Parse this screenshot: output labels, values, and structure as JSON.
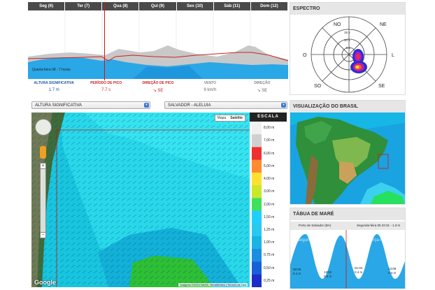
{
  "forecast": {
    "days": [
      "Seg (6)",
      "Ter (7)",
      "Qua (8)",
      "Qui (9)",
      "Sex (10)",
      "Sáb (11)",
      "Dom (12)"
    ],
    "cursor_note": "Quarta-feira 08 - 7 horas",
    "params": [
      {
        "label": "ALTURA SIGNIFICATIVA",
        "value": "1.7 m"
      },
      {
        "label": "PERÍODO DE PICO",
        "value": "7.7 s"
      },
      {
        "label": "DIREÇÃO DE PICO",
        "value": "SE"
      },
      {
        "label": "VENTO",
        "value": "9 km/h"
      },
      {
        "label": "DIREÇÃO",
        "value": "SE"
      }
    ],
    "colors": {
      "wave": "#2aa7e6",
      "period": "#cc2222",
      "wind": "#bdbdbd"
    }
  },
  "selects": {
    "parameter": "ALTURA SIGNIFICATIVA",
    "location": "SALVADOR - ALELUIA"
  },
  "map": {
    "toggle": [
      "Mapa",
      "Satélite"
    ],
    "toggle_selected": "Satélite",
    "logo": "Google",
    "credits": "Imagens ©2015 NASA, TerraMetrics | Termos de Uso",
    "icons": [
      "pan-control-icon",
      "pegman-icon",
      "zoom-in-icon",
      "zoom-out-icon"
    ]
  },
  "scale": {
    "title": "ESCALA",
    "values": [
      "8,00 m",
      "7,00 m",
      "6,00 m",
      "5,00 m",
      "4,00 m",
      "3,00 m",
      "2,00 m",
      "1,50 m",
      "1,25 m",
      "1,00 m",
      "0,75 m",
      "0,50 m",
      "0,25 m"
    ]
  },
  "espectro": {
    "title": "ESPECTRO",
    "directions": {
      "no": "NO",
      "ne": "NE",
      "o": "O",
      "l": "L",
      "so": "SO",
      "se": "SE"
    },
    "rings": [
      "15 s",
      "10 s",
      "5 s"
    ]
  },
  "brasil": {
    "title": "VISUALIZAÇÃO DO BRASIL"
  },
  "mare": {
    "title": "TÁBUA DE MARÉ",
    "port": "Porto de Salvador (BA)",
    "now": "Segunda-feira 06 22:31 - 1.3 m",
    "overlay": "Segunda-feira (6)",
    "overlay2": "Terça-feira (7)",
    "ticks": [
      {
        "time": "08:05",
        "height": "0.4 m"
      },
      {
        "time": "13:02",
        "height": "0.5 m"
      },
      {
        "time": "01:04",
        "height": "0.4 m"
      },
      {
        "time": "13:08",
        "height": "0.4 m"
      }
    ]
  }
}
